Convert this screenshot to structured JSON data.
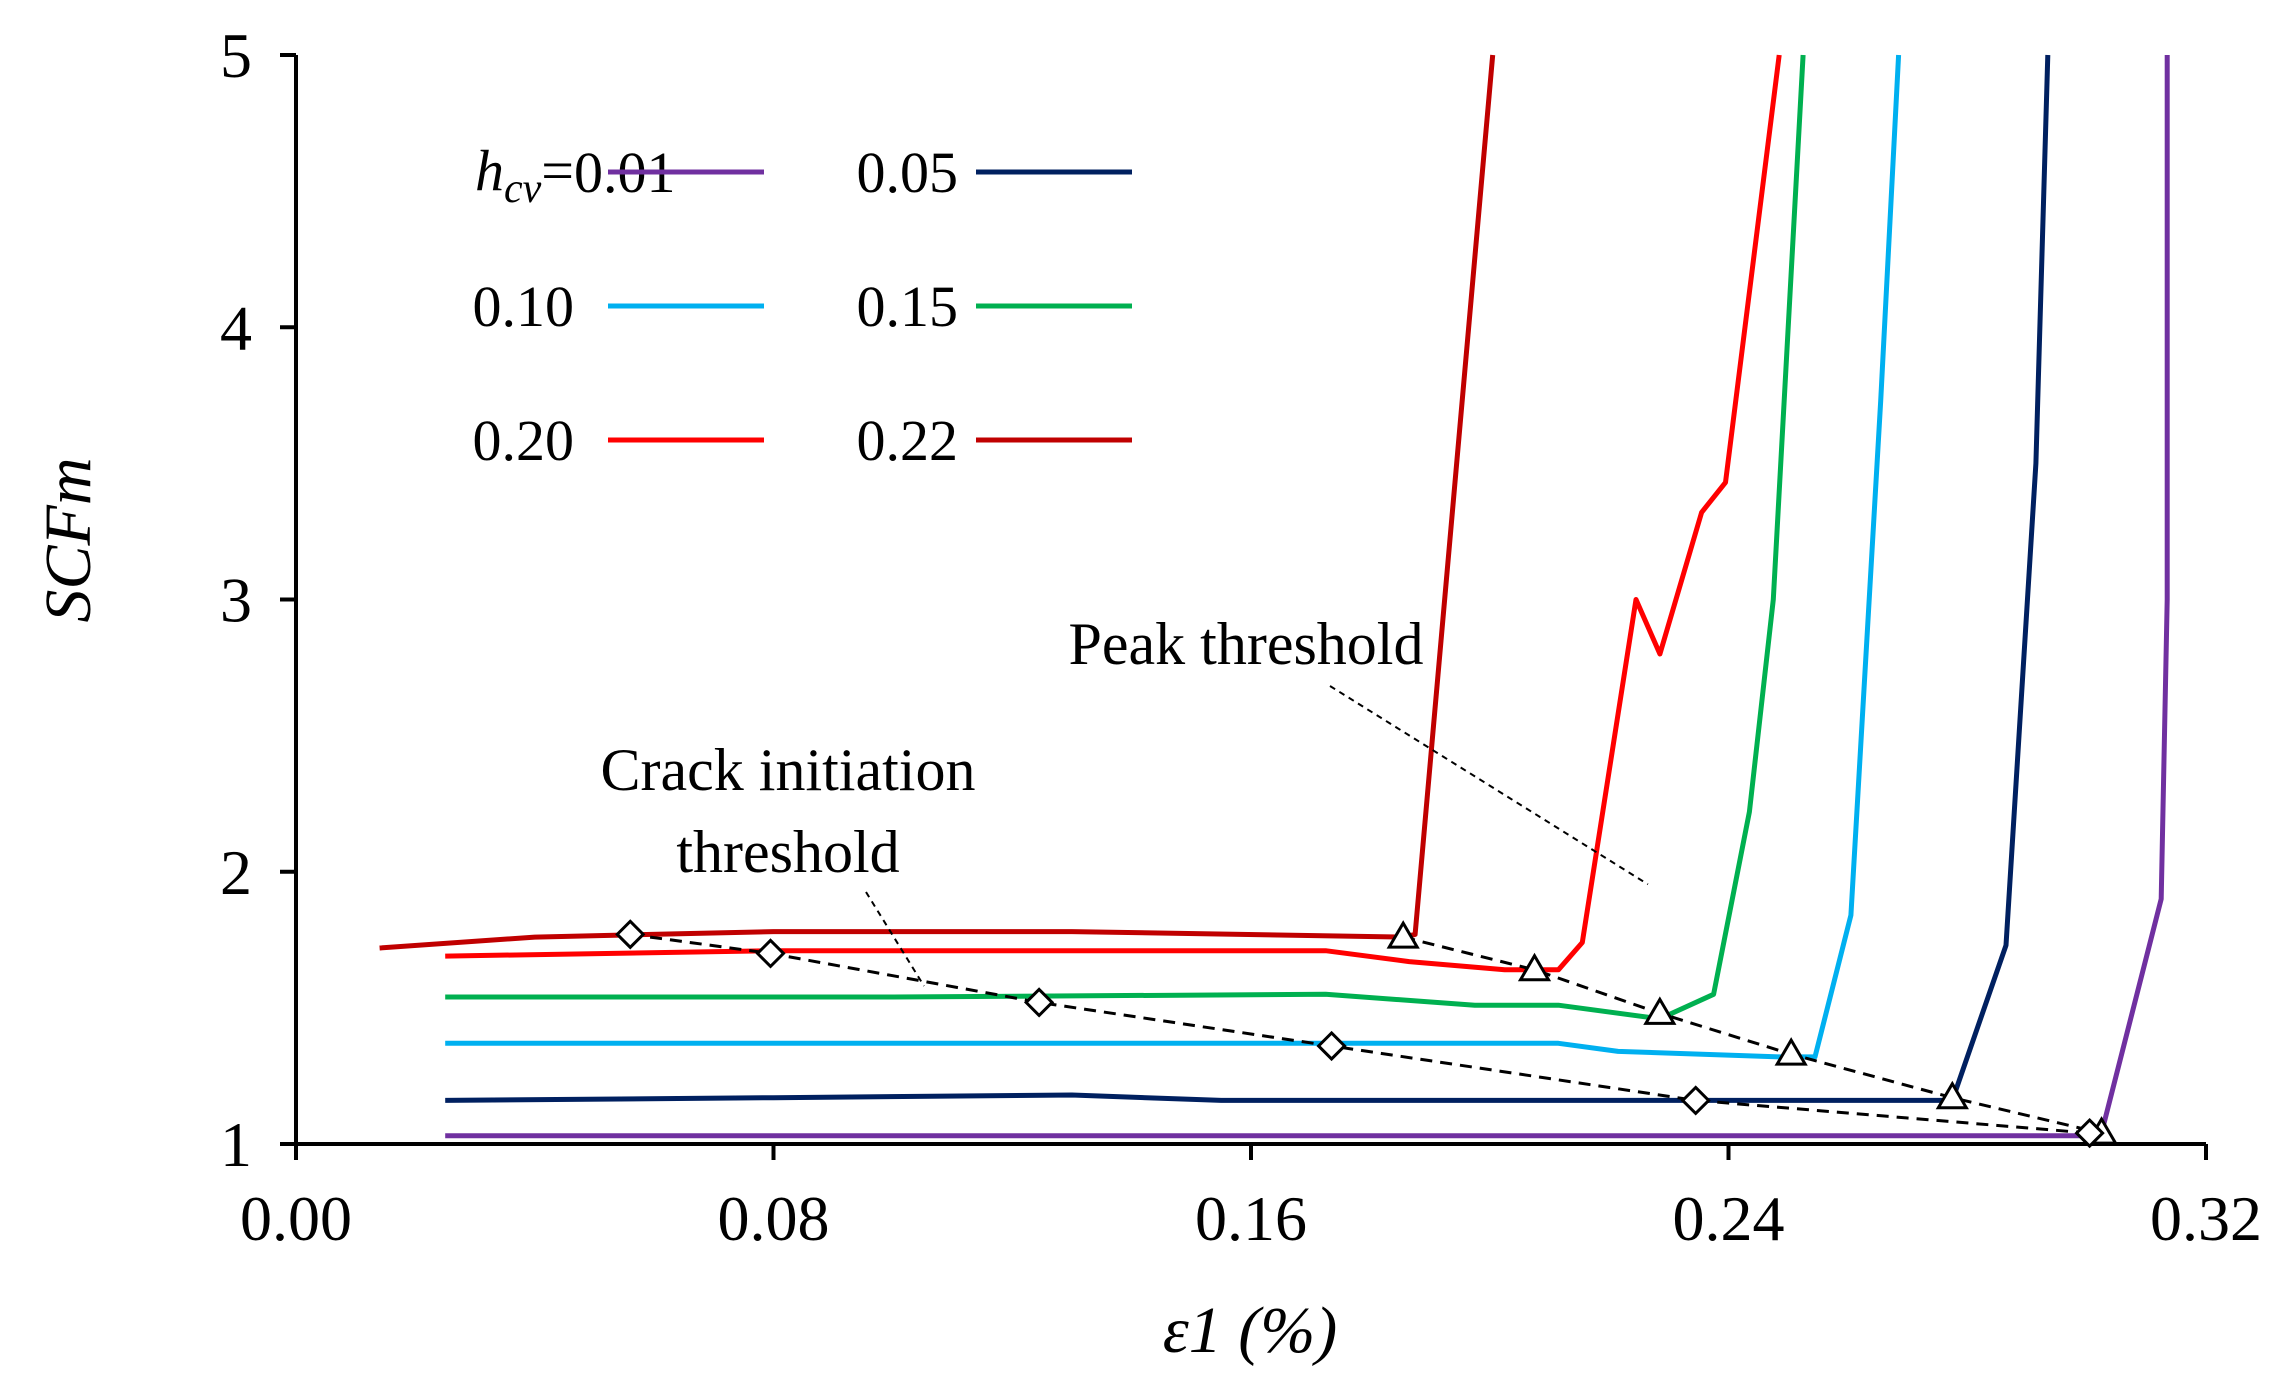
{
  "chart_data": {
    "type": "line",
    "title": "",
    "xlabel": "ε1 (%)",
    "ylabel": "SCFm",
    "xlim": [
      0.0,
      0.32
    ],
    "ylim": [
      1,
      5
    ],
    "x_ticks": [
      "0.00",
      "0.08",
      "0.16",
      "0.24",
      "0.32"
    ],
    "y_ticks": [
      "1",
      "2",
      "3",
      "4",
      "5"
    ],
    "legend_title_main": "h",
    "legend_title_sub": "cv",
    "legend_title_eq": "=",
    "series": [
      {
        "name": "0.01",
        "color": "#7030a0",
        "x": [
          0.025,
          0.1,
          0.2,
          0.3,
          0.3025,
          0.3125,
          0.3135,
          0.3135
        ],
        "y": [
          1.03,
          1.03,
          1.03,
          1.03,
          1.04,
          1.9,
          3.0,
          5.0
        ]
      },
      {
        "name": "0.05",
        "color": "#002060",
        "x": [
          0.025,
          0.08,
          0.13,
          0.155,
          0.2,
          0.26,
          0.2775,
          0.2865,
          0.2915,
          0.2935
        ],
        "y": [
          1.16,
          1.17,
          1.18,
          1.16,
          1.16,
          1.16,
          1.16,
          1.73,
          3.5,
          5.0
        ]
      },
      {
        "name": "0.10",
        "color": "#00b0f0",
        "x": [
          0.025,
          0.1,
          0.2,
          0.2115,
          0.2215,
          0.2485,
          0.2545,
          0.2605,
          0.2655,
          0.2685
        ],
        "y": [
          1.37,
          1.37,
          1.37,
          1.37,
          1.34,
          1.32,
          1.32,
          1.84,
          3.73,
          5.0
        ]
      },
      {
        "name": "0.15",
        "color": "#00b050",
        "x": [
          0.025,
          0.1,
          0.1725,
          0.1975,
          0.2115,
          0.2285,
          0.2375,
          0.2435,
          0.2475,
          0.2525
        ],
        "y": [
          1.54,
          1.54,
          1.55,
          1.51,
          1.51,
          1.46,
          1.55,
          2.22,
          3.0,
          5.0
        ]
      },
      {
        "name": "0.20",
        "color": "#ff0000",
        "x": [
          0.025,
          0.08,
          0.1725,
          0.1865,
          0.2025,
          0.2115,
          0.2155,
          0.2245,
          0.2285,
          0.2355,
          0.2395,
          0.2485
        ],
        "y": [
          1.69,
          1.71,
          1.71,
          1.67,
          1.64,
          1.64,
          1.74,
          3.0,
          2.8,
          3.32,
          3.43,
          5.0
        ]
      },
      {
        "name": "0.22",
        "color": "#c00000",
        "x": [
          0.014,
          0.04,
          0.08,
          0.13,
          0.1855,
          0.1875,
          0.2005
        ],
        "y": [
          1.72,
          1.76,
          1.78,
          1.78,
          1.76,
          1.77,
          5.0
        ]
      }
    ],
    "annotations": [
      {
        "label_lines": [
          "Peak threshold"
        ],
        "marker": "triangle",
        "style": "dashed",
        "points": {
          "x": [
            0.1855,
            0.2075,
            0.2285,
            0.2505,
            0.2775,
            0.3025
          ],
          "y": [
            1.76,
            1.64,
            1.48,
            1.33,
            1.17,
            1.04
          ]
        }
      },
      {
        "label_lines": [
          "Crack initiation",
          "threshold"
        ],
        "marker": "diamond",
        "style": "dashed",
        "points": {
          "x": [
            0.056,
            0.0795,
            0.1245,
            0.1735,
            0.2345,
            0.3005
          ],
          "y": [
            1.77,
            1.7,
            1.52,
            1.36,
            1.16,
            1.04
          ]
        }
      }
    ]
  }
}
